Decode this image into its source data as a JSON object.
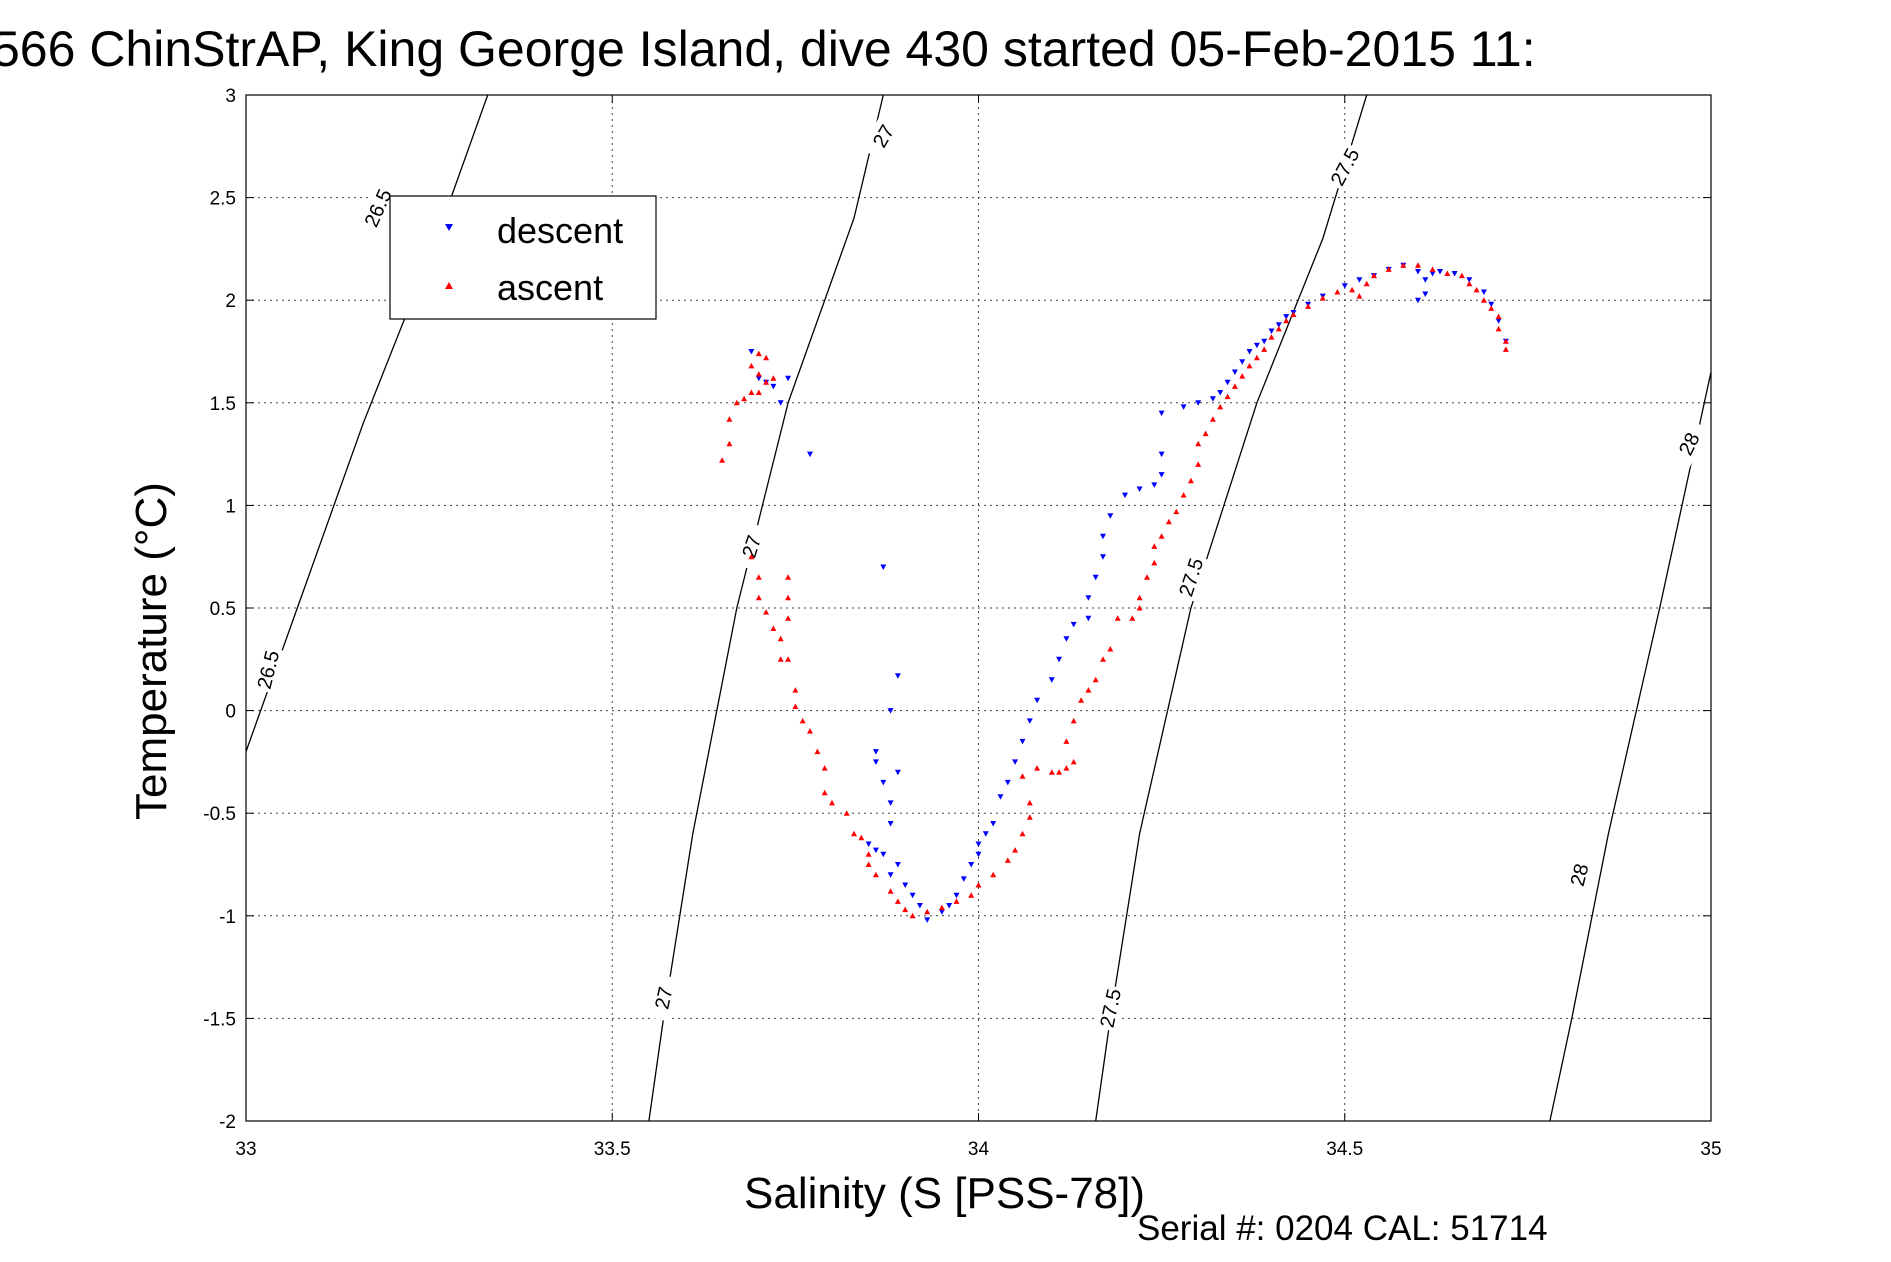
{
  "chart_data": {
    "type": "scatter",
    "title": "566 ChinStrAP, King George Island, dive 430 started 05-Feb-2015 11:",
    "xlabel": "Salinity (S [PSS-78])",
    "ylabel": "Temperature (°C)",
    "xlim": [
      33,
      35
    ],
    "ylim": [
      -2,
      3
    ],
    "x_ticks": [
      33,
      33.5,
      34,
      34.5,
      35
    ],
    "x_tick_labels": [
      "33",
      "33.5",
      "34",
      "34.5",
      "35"
    ],
    "y_ticks": [
      -2,
      -1.5,
      -1,
      -0.5,
      0,
      0.5,
      1,
      1.5,
      2,
      2.5,
      3
    ],
    "y_tick_labels": [
      "-2",
      "-1.5",
      "-1",
      "-0.5",
      "0",
      "0.5",
      "1",
      "1.5",
      "2",
      "2.5",
      "3"
    ],
    "grid": true,
    "legend_position": "top-left",
    "footer": "Serial #: 0204  CAL: 51714",
    "contours": [
      {
        "label": "26.5",
        "points": [
          [
            33.0,
            -0.2
          ],
          [
            33.06,
            0.4
          ],
          [
            33.16,
            1.4
          ],
          [
            33.26,
            2.3
          ],
          [
            33.33,
            3.0
          ]
        ]
      },
      {
        "label": "27",
        "points": [
          [
            33.55,
            -2.0
          ],
          [
            33.57,
            -1.5
          ],
          [
            33.61,
            -0.6
          ],
          [
            33.67,
            0.5
          ],
          [
            33.74,
            1.5
          ],
          [
            33.83,
            2.4
          ],
          [
            33.87,
            3.0
          ]
        ]
      },
      {
        "label": "27.5",
        "points": [
          [
            34.16,
            -2.0
          ],
          [
            34.18,
            -1.5
          ],
          [
            34.22,
            -0.6
          ],
          [
            34.29,
            0.5
          ],
          [
            34.38,
            1.5
          ],
          [
            34.47,
            2.3
          ],
          [
            34.53,
            3.0
          ]
        ]
      },
      {
        "label": "28",
        "points": [
          [
            34.78,
            -2.0
          ],
          [
            34.81,
            -1.5
          ],
          [
            34.86,
            -0.6
          ],
          [
            34.93,
            0.5
          ],
          [
            35.0,
            1.65
          ]
        ]
      }
    ],
    "contour_labels": [
      {
        "text": "26.5",
        "s": 33.18,
        "t": 2.45,
        "angle": -66
      },
      {
        "text": "26.5",
        "s": 33.03,
        "t": 0.2,
        "angle": -76
      },
      {
        "text": "27",
        "s": 33.87,
        "t": 2.8,
        "angle": -60
      },
      {
        "text": "27",
        "s": 33.69,
        "t": 0.8,
        "angle": -72
      },
      {
        "text": "27",
        "s": 33.57,
        "t": -1.4,
        "angle": -78
      },
      {
        "text": "27.5",
        "s": 34.5,
        "t": 2.65,
        "angle": -62
      },
      {
        "text": "27.5",
        "s": 34.29,
        "t": 0.65,
        "angle": -72
      },
      {
        "text": "27.5",
        "s": 34.18,
        "t": -1.45,
        "angle": -78
      },
      {
        "text": "28",
        "s": 34.97,
        "t": 1.3,
        "angle": -64
      },
      {
        "text": "28",
        "s": 34.82,
        "t": -0.8,
        "angle": -76
      }
    ],
    "series": [
      {
        "name": "descent",
        "color": "#0000ff",
        "marker": "triangle-down",
        "points": [
          [
            33.69,
            1.75
          ],
          [
            33.7,
            1.62
          ],
          [
            33.72,
            1.58
          ],
          [
            33.73,
            1.5
          ],
          [
            33.71,
            1.6
          ],
          [
            33.74,
            1.62
          ],
          [
            33.77,
            1.25
          ],
          [
            33.87,
            0.7
          ],
          [
            33.89,
            0.17
          ],
          [
            33.88,
            0.0
          ],
          [
            33.86,
            -0.25
          ],
          [
            33.86,
            -0.2
          ],
          [
            33.87,
            -0.35
          ],
          [
            33.88,
            -0.45
          ],
          [
            33.89,
            -0.3
          ],
          [
            33.88,
            -0.55
          ],
          [
            33.85,
            -0.65
          ],
          [
            33.86,
            -0.68
          ],
          [
            33.87,
            -0.7
          ],
          [
            33.89,
            -0.75
          ],
          [
            33.88,
            -0.8
          ],
          [
            33.9,
            -0.85
          ],
          [
            33.91,
            -0.9
          ],
          [
            33.92,
            -0.95
          ],
          [
            33.93,
            -1.02
          ],
          [
            33.95,
            -0.98
          ],
          [
            33.96,
            -0.95
          ],
          [
            33.97,
            -0.9
          ],
          [
            33.98,
            -0.82
          ],
          [
            33.99,
            -0.75
          ],
          [
            34.0,
            -0.7
          ],
          [
            34.0,
            -0.65
          ],
          [
            34.01,
            -0.6
          ],
          [
            34.02,
            -0.55
          ],
          [
            34.03,
            -0.42
          ],
          [
            34.04,
            -0.35
          ],
          [
            34.05,
            -0.25
          ],
          [
            34.06,
            -0.15
          ],
          [
            34.07,
            -0.05
          ],
          [
            34.08,
            0.05
          ],
          [
            34.1,
            0.15
          ],
          [
            34.11,
            0.25
          ],
          [
            34.12,
            0.35
          ],
          [
            34.13,
            0.42
          ],
          [
            34.15,
            0.45
          ],
          [
            34.15,
            0.55
          ],
          [
            34.16,
            0.65
          ],
          [
            34.17,
            0.75
          ],
          [
            34.17,
            0.85
          ],
          [
            34.18,
            0.95
          ],
          [
            34.2,
            1.05
          ],
          [
            34.22,
            1.08
          ],
          [
            34.24,
            1.1
          ],
          [
            34.25,
            1.15
          ],
          [
            34.25,
            1.25
          ],
          [
            34.25,
            1.45
          ],
          [
            34.28,
            1.48
          ],
          [
            34.3,
            1.5
          ],
          [
            34.32,
            1.52
          ],
          [
            34.33,
            1.55
          ],
          [
            34.34,
            1.6
          ],
          [
            34.35,
            1.65
          ],
          [
            34.36,
            1.7
          ],
          [
            34.37,
            1.75
          ],
          [
            34.38,
            1.78
          ],
          [
            34.39,
            1.8
          ],
          [
            34.4,
            1.85
          ],
          [
            34.41,
            1.88
          ],
          [
            34.42,
            1.92
          ],
          [
            34.43,
            1.94
          ],
          [
            34.45,
            1.98
          ],
          [
            34.47,
            2.02
          ],
          [
            34.5,
            2.07
          ],
          [
            34.52,
            2.1
          ],
          [
            34.54,
            2.12
          ],
          [
            34.56,
            2.15
          ],
          [
            34.58,
            2.17
          ],
          [
            34.6,
            2.14
          ],
          [
            34.61,
            2.1
          ],
          [
            34.62,
            2.13
          ],
          [
            34.6,
            2.0
          ],
          [
            34.61,
            2.03
          ],
          [
            34.63,
            2.14
          ],
          [
            34.65,
            2.13
          ],
          [
            34.67,
            2.1
          ],
          [
            34.69,
            2.04
          ],
          [
            34.7,
            1.98
          ],
          [
            34.71,
            1.9
          ],
          [
            34.72,
            1.8
          ]
        ]
      },
      {
        "name": "ascent",
        "color": "#ff0000",
        "marker": "triangle-up",
        "points": [
          [
            33.65,
            1.22
          ],
          [
            33.66,
            1.3
          ],
          [
            33.66,
            1.42
          ],
          [
            33.67,
            1.5
          ],
          [
            33.68,
            1.52
          ],
          [
            33.69,
            1.55
          ],
          [
            33.7,
            1.55
          ],
          [
            33.71,
            1.6
          ],
          [
            33.71,
            1.72
          ],
          [
            33.7,
            1.74
          ],
          [
            33.69,
            1.68
          ],
          [
            33.72,
            1.62
          ],
          [
            33.7,
            1.64
          ],
          [
            33.69,
            0.75
          ],
          [
            33.7,
            0.65
          ],
          [
            33.7,
            0.55
          ],
          [
            33.71,
            0.48
          ],
          [
            33.72,
            0.4
          ],
          [
            33.73,
            0.35
          ],
          [
            33.74,
            0.45
          ],
          [
            33.74,
            0.55
          ],
          [
            33.74,
            0.65
          ],
          [
            33.73,
            0.25
          ],
          [
            33.74,
            0.25
          ],
          [
            33.75,
            0.1
          ],
          [
            33.75,
            0.02
          ],
          [
            33.76,
            -0.05
          ],
          [
            33.77,
            -0.1
          ],
          [
            33.78,
            -0.2
          ],
          [
            33.79,
            -0.28
          ],
          [
            33.79,
            -0.4
          ],
          [
            33.8,
            -0.45
          ],
          [
            33.82,
            -0.5
          ],
          [
            33.83,
            -0.6
          ],
          [
            33.84,
            -0.62
          ],
          [
            33.85,
            -0.7
          ],
          [
            33.85,
            -0.75
          ],
          [
            33.86,
            -0.8
          ],
          [
            33.88,
            -0.88
          ],
          [
            33.89,
            -0.93
          ],
          [
            33.9,
            -0.97
          ],
          [
            33.91,
            -1.0
          ],
          [
            33.93,
            -0.98
          ],
          [
            33.95,
            -0.96
          ],
          [
            33.97,
            -0.93
          ],
          [
            33.99,
            -0.9
          ],
          [
            34.0,
            -0.85
          ],
          [
            34.02,
            -0.8
          ],
          [
            34.04,
            -0.73
          ],
          [
            34.05,
            -0.68
          ],
          [
            34.06,
            -0.6
          ],
          [
            34.07,
            -0.52
          ],
          [
            34.07,
            -0.45
          ],
          [
            34.06,
            -0.32
          ],
          [
            34.08,
            -0.28
          ],
          [
            34.1,
            -0.3
          ],
          [
            34.11,
            -0.3
          ],
          [
            34.12,
            -0.28
          ],
          [
            34.13,
            -0.25
          ],
          [
            34.12,
            -0.15
          ],
          [
            34.13,
            -0.05
          ],
          [
            34.14,
            0.05
          ],
          [
            34.15,
            0.1
          ],
          [
            34.16,
            0.15
          ],
          [
            34.17,
            0.25
          ],
          [
            34.18,
            0.3
          ],
          [
            34.19,
            0.45
          ],
          [
            34.21,
            0.45
          ],
          [
            34.22,
            0.5
          ],
          [
            34.22,
            0.55
          ],
          [
            34.23,
            0.65
          ],
          [
            34.24,
            0.72
          ],
          [
            34.24,
            0.8
          ],
          [
            34.25,
            0.85
          ],
          [
            34.26,
            0.92
          ],
          [
            34.27,
            0.97
          ],
          [
            34.28,
            1.05
          ],
          [
            34.29,
            1.12
          ],
          [
            34.3,
            1.2
          ],
          [
            34.3,
            1.3
          ],
          [
            34.31,
            1.35
          ],
          [
            34.32,
            1.42
          ],
          [
            34.33,
            1.48
          ],
          [
            34.34,
            1.53
          ],
          [
            34.35,
            1.58
          ],
          [
            34.36,
            1.63
          ],
          [
            34.37,
            1.68
          ],
          [
            34.38,
            1.72
          ],
          [
            34.39,
            1.76
          ],
          [
            34.4,
            1.82
          ],
          [
            34.41,
            1.86
          ],
          [
            34.42,
            1.9
          ],
          [
            34.43,
            1.93
          ],
          [
            34.45,
            1.97
          ],
          [
            34.47,
            2.01
          ],
          [
            34.49,
            2.04
          ],
          [
            34.51,
            2.05
          ],
          [
            34.52,
            2.02
          ],
          [
            34.53,
            2.08
          ],
          [
            34.54,
            2.12
          ],
          [
            34.56,
            2.15
          ],
          [
            34.58,
            2.17
          ],
          [
            34.6,
            2.17
          ],
          [
            34.62,
            2.15
          ],
          [
            34.64,
            2.13
          ],
          [
            34.66,
            2.12
          ],
          [
            34.67,
            2.08
          ],
          [
            34.68,
            2.05
          ],
          [
            34.69,
            2.0
          ],
          [
            34.7,
            1.96
          ],
          [
            34.71,
            1.92
          ],
          [
            34.71,
            1.86
          ],
          [
            34.72,
            1.8
          ],
          [
            34.72,
            1.76
          ]
        ]
      }
    ]
  }
}
